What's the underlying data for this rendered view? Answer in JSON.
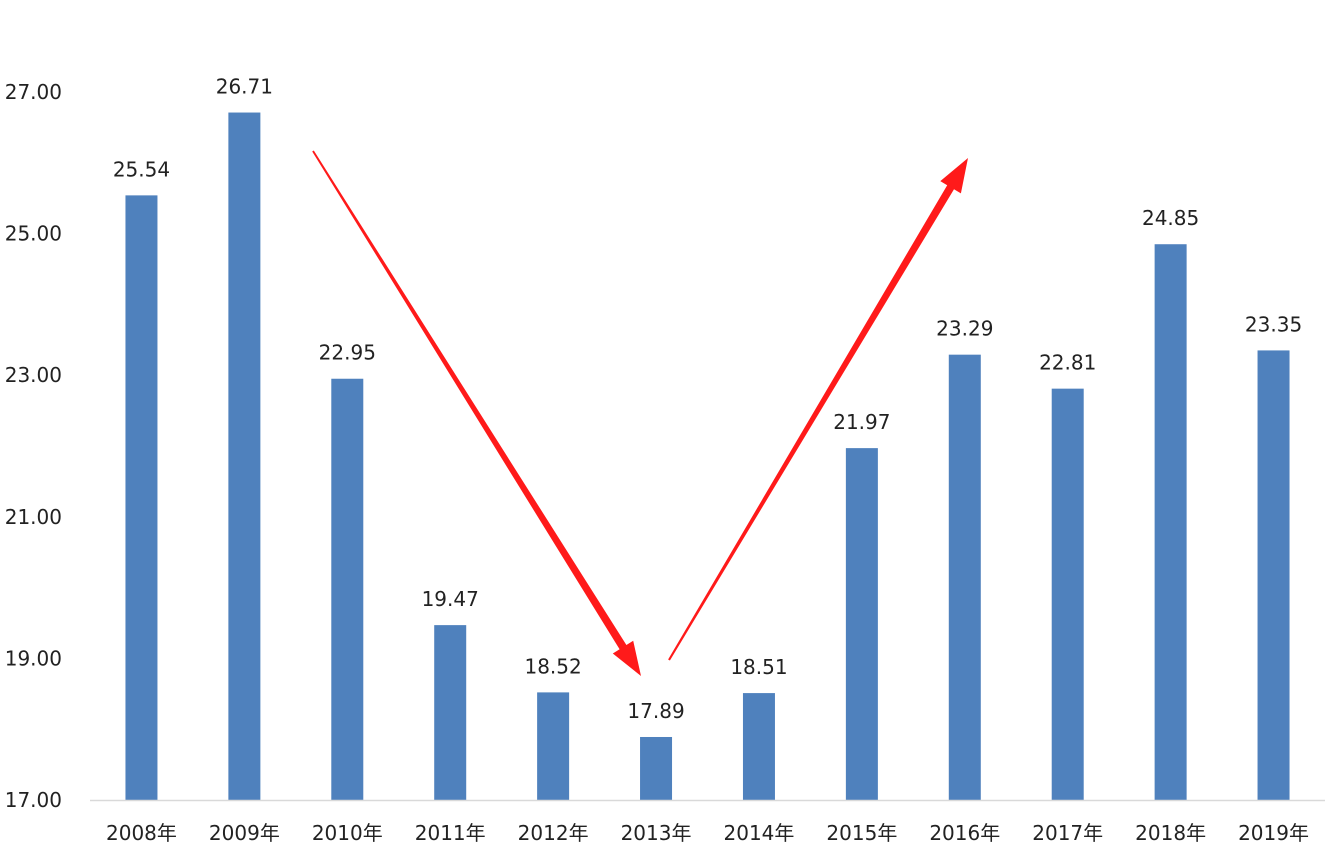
{
  "chart_data": {
    "type": "bar",
    "categories": [
      "2008年",
      "2009年",
      "2010年",
      "2011年",
      "2012年",
      "2013年",
      "2014年",
      "2015年",
      "2016年",
      "2017年",
      "2018年",
      "2019年"
    ],
    "series": [
      {
        "values": [
          25.54,
          26.71,
          22.95,
          19.47,
          18.52,
          17.89,
          18.51,
          21.97,
          23.29,
          22.81,
          24.85,
          23.35
        ],
        "value_labels": [
          "25.54",
          "26.71",
          "22.95",
          "19.47",
          "18.52",
          "17.89",
          "18.51",
          "21.97",
          "23.29",
          "22.81",
          "24.85",
          "23.35"
        ]
      }
    ],
    "ylim": [
      17,
      27
    ],
    "yticks": [
      "17.00",
      "19.00",
      "21.00",
      "23.00",
      "25.00",
      "27.00"
    ],
    "grid": false,
    "legend": "none",
    "colors": {
      "bar": "#4f81bd",
      "arrow": "#ff1a1a",
      "axis": "#d9d9d9"
    },
    "annotations": [
      {
        "kind": "arrow",
        "direction": "down",
        "from_category": "2010年",
        "to_category": "2013年"
      },
      {
        "kind": "arrow",
        "direction": "up",
        "from_category": "2013年",
        "to_category": "2016年"
      }
    ]
  }
}
